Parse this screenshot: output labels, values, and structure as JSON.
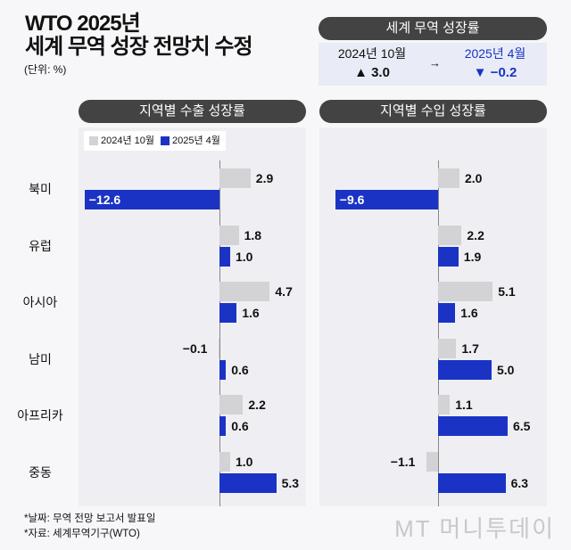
{
  "header": {
    "title_line1": "WTO 2025년",
    "title_line2": "세계 무역 성장 전망치 수정",
    "unit": "(단위: %)"
  },
  "world": {
    "title": "세계 무역 성장률",
    "from_label": "2024년 10월",
    "from_value": "▲ 3.0",
    "arrow": "→",
    "to_label": "2025년 4월",
    "to_value": "▼ −0.2",
    "up_color": "#e53935",
    "to_color": "#1b33c4"
  },
  "footer": {
    "note1": "*날짜: 무역 전망 보고서 발표일",
    "note2": "*자료: 세계무역기구(WTO)",
    "logo": "MT 머니투데이"
  },
  "chart_data": [
    {
      "type": "bar",
      "orientation": "horizontal",
      "title": "지역별 수출 성장률",
      "categories": [
        "북미",
        "유럽",
        "아시아",
        "남미",
        "아프리카",
        "중동"
      ],
      "series": [
        {
          "name": "2024년 10월",
          "color": "#d3d3d6",
          "values": [
            2.9,
            1.8,
            4.7,
            -0.1,
            2.2,
            1.0
          ]
        },
        {
          "name": "2025년 4월",
          "color": "#1b33c4",
          "values": [
            -12.6,
            1.0,
            1.6,
            0.6,
            0.6,
            5.3
          ]
        }
      ]
    },
    {
      "type": "bar",
      "orientation": "horizontal",
      "title": "지역별 수입 성장률",
      "categories": [
        "북미",
        "유럽",
        "아시아",
        "남미",
        "아프리카",
        "중동"
      ],
      "series": [
        {
          "name": "2024년 10월",
          "color": "#d3d3d6",
          "values": [
            2.0,
            2.2,
            5.1,
            1.7,
            1.1,
            -1.1
          ]
        },
        {
          "name": "2025년 4월",
          "color": "#1b33c4",
          "values": [
            -9.6,
            1.9,
            1.6,
            5.0,
            6.5,
            6.3
          ]
        }
      ]
    }
  ]
}
